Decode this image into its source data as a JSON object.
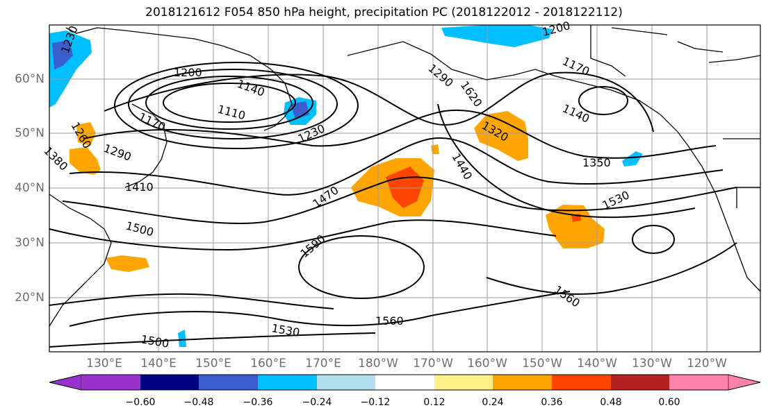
{
  "title": "2018121612 F054 850 hPa height, precipitation PC (2018122012 - 2018122112)",
  "lat_labels": [
    "60°N",
    "50°N",
    "40°N",
    "30°N",
    "20°N"
  ],
  "lon_labels": [
    "130°E",
    "140°E",
    "150°E",
    "160°E",
    "170°E",
    "180°W",
    "170°W",
    "160°W",
    "150°W",
    "140°W",
    "130°W",
    "120°W"
  ],
  "contour_labels": [
    "1230",
    "1200",
    "1140",
    "1110",
    "1170",
    "1290",
    "1260",
    "1380",
    "1410",
    "1500",
    "1230",
    "1470",
    "1590",
    "1560",
    "1530",
    "1500",
    "1200",
    "1170",
    "1290",
    "1140",
    "1320",
    "1440",
    "1350",
    "1530",
    "1560",
    "1620"
  ],
  "colorbar": {
    "ticks": [
      "−0.60",
      "−0.48",
      "−0.36",
      "−0.24",
      "−0.12",
      "0.12",
      "0.24",
      "0.36",
      "0.48",
      "0.60"
    ],
    "colors": [
      "#9932cc",
      "#000080",
      "#3a5fcd",
      "#00bfff",
      "#b2dfee",
      "#ffffff",
      "#fff08a",
      "#ffa500",
      "#ff4500",
      "#b22222",
      "#ff82ab"
    ]
  }
}
